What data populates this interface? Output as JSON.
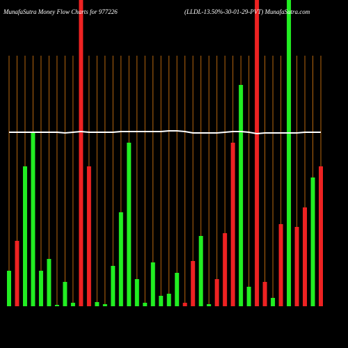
{
  "chart_data": {
    "type": "bar",
    "title": "MunafaSutra  Money Flow Charts for 977226",
    "subtitle": "(LLDL-13.50%-30-01-29-PVT)  MunafaSutra.com",
    "categories": [
      null,
      null,
      null,
      null,
      null,
      null,
      null,
      null,
      null,
      null,
      null,
      null,
      null,
      null,
      null,
      null,
      null,
      null,
      null,
      null,
      null,
      null,
      null,
      null,
      null,
      null,
      null,
      null,
      null,
      null,
      null,
      null,
      null,
      null,
      null,
      null,
      null,
      null,
      null,
      null
    ],
    "values": [
      51,
      94,
      201,
      250,
      51,
      68,
      2,
      35,
      5,
      440,
      201,
      6,
      3,
      58,
      135,
      235,
      39,
      5,
      63,
      15,
      18,
      48,
      5,
      65,
      101,
      3,
      39,
      105,
      235,
      318,
      28,
      440,
      35,
      12,
      118,
      440,
      114,
      142,
      185,
      201
    ],
    "colors": [
      "#22ee22",
      "#ee2222",
      "#22ee22",
      "#22ee22",
      "#22ee22",
      "#22ee22",
      "#22ee22",
      "#22ee22",
      "#22ee22",
      "#ee2222",
      "#ee2222",
      "#22ee22",
      "#22ee22",
      "#22ee22",
      "#22ee22",
      "#22ee22",
      "#22ee22",
      "#22ee22",
      "#22ee22",
      "#22ee22",
      "#22ee22",
      "#22ee22",
      "#ee2222",
      "#ee2222",
      "#22ee22",
      "#22ee22",
      "#ee2222",
      "#ee2222",
      "#ee2222",
      "#22ee22",
      "#22ee22",
      "#ee2222",
      "#ee2222",
      "#22ee22",
      "#ee2222",
      "#22ee22",
      "#ee2222",
      "#ee2222",
      "#22ee22",
      "#ee2222"
    ],
    "line": {
      "color": "#ffffff",
      "values": [
        250,
        250,
        250,
        250,
        250,
        250,
        250,
        249,
        250,
        251,
        250,
        250,
        250,
        250,
        251,
        251,
        251,
        251,
        251,
        251,
        252,
        252,
        251,
        249,
        249,
        249,
        249,
        250,
        251,
        251,
        250,
        248,
        249,
        249,
        249,
        249,
        249,
        250,
        250,
        250
      ]
    },
    "grid_color": "#b8670e",
    "background": "#000000"
  }
}
